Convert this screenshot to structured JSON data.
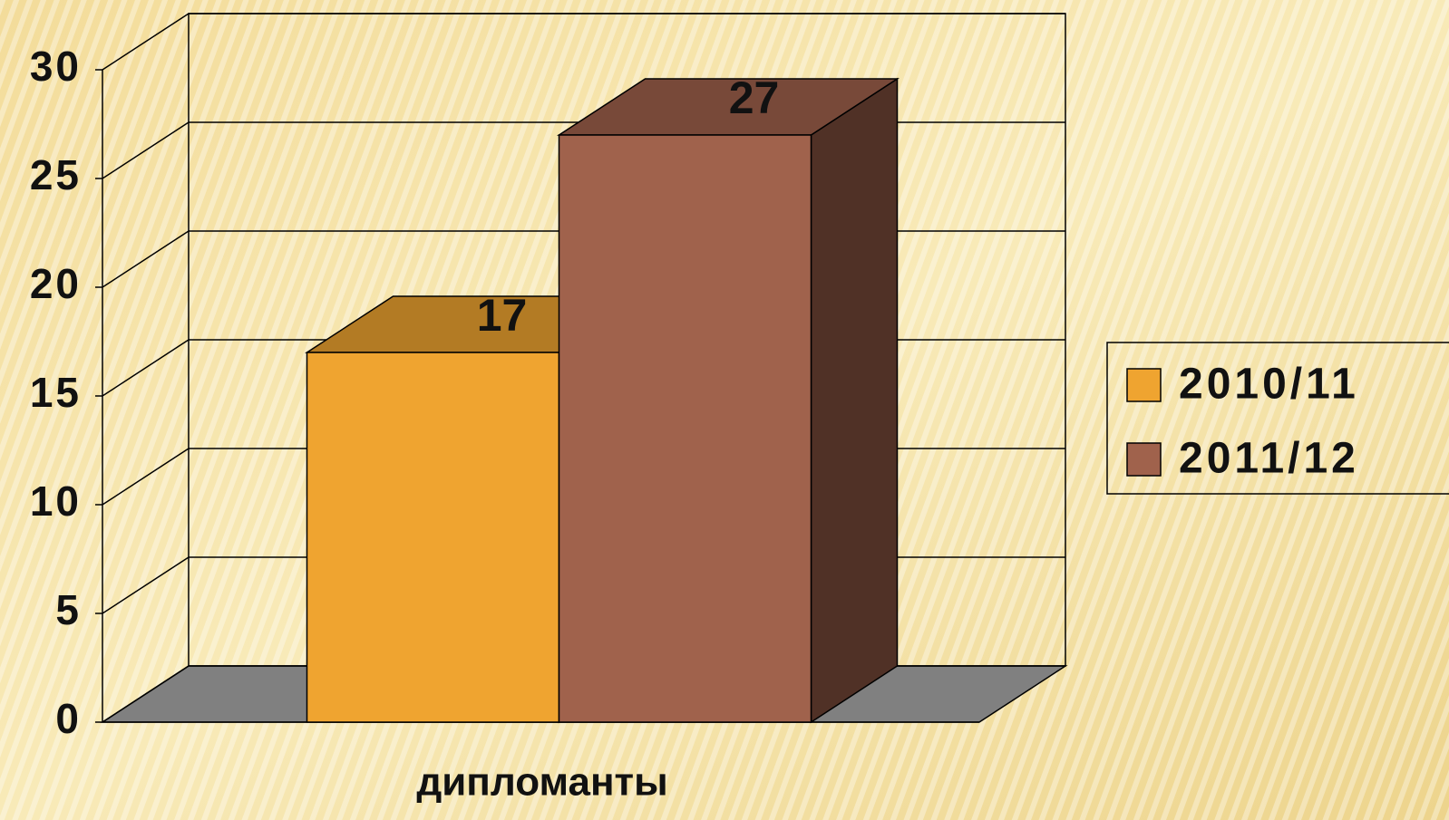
{
  "chart_data": {
    "type": "bar3d",
    "categories": [
      "дипломанты"
    ],
    "series": [
      {
        "name": "2010/11",
        "color": "#EFA430",
        "values": [
          17
        ]
      },
      {
        "name": "2011/12",
        "color": "#A0624C",
        "values": [
          27
        ]
      }
    ],
    "ylim": [
      0,
      30
    ],
    "yticks": [
      0,
      5,
      10,
      15,
      20,
      25,
      30
    ],
    "grid": true,
    "legend": "right"
  }
}
